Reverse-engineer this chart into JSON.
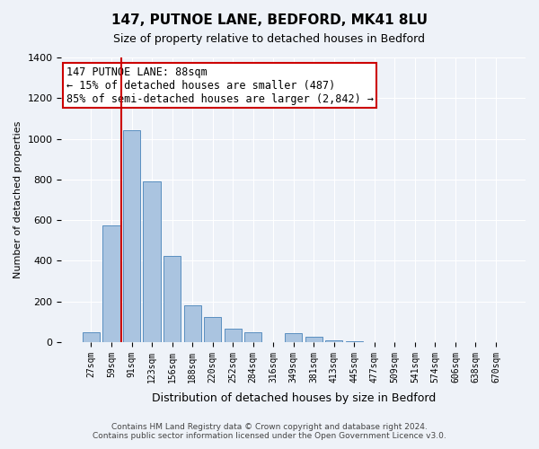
{
  "title": "147, PUTNOE LANE, BEDFORD, MK41 8LU",
  "subtitle": "Size of property relative to detached houses in Bedford",
  "xlabel": "Distribution of detached houses by size in Bedford",
  "ylabel": "Number of detached properties",
  "bin_labels": [
    "27sqm",
    "59sqm",
    "91sqm",
    "123sqm",
    "156sqm",
    "188sqm",
    "220sqm",
    "252sqm",
    "284sqm",
    "316sqm",
    "349sqm",
    "381sqm",
    "413sqm",
    "445sqm",
    "477sqm",
    "509sqm",
    "541sqm",
    "574sqm",
    "606sqm",
    "638sqm",
    "670sqm"
  ],
  "bar_values": [
    50,
    575,
    1040,
    790,
    425,
    180,
    125,
    65,
    50,
    0,
    45,
    25,
    10,
    5,
    0,
    0,
    0,
    0,
    0,
    0,
    0
  ],
  "bar_color": "#aac4e0",
  "bar_edge_color": "#5a8fc0",
  "vline_x": 1.5,
  "vline_color": "#cc0000",
  "ylim": [
    0,
    1400
  ],
  "yticks": [
    0,
    200,
    400,
    600,
    800,
    1000,
    1200,
    1400
  ],
  "annotation_title": "147 PUTNOE LANE: 88sqm",
  "annotation_line1": "← 15% of detached houses are smaller (487)",
  "annotation_line2": "85% of semi-detached houses are larger (2,842) →",
  "annotation_box_color": "#ffffff",
  "annotation_box_edge": "#cc0000",
  "footer_line1": "Contains HM Land Registry data © Crown copyright and database right 2024.",
  "footer_line2": "Contains public sector information licensed under the Open Government Licence v3.0.",
  "bg_color": "#eef2f8",
  "plot_bg_color": "#eef2f8"
}
